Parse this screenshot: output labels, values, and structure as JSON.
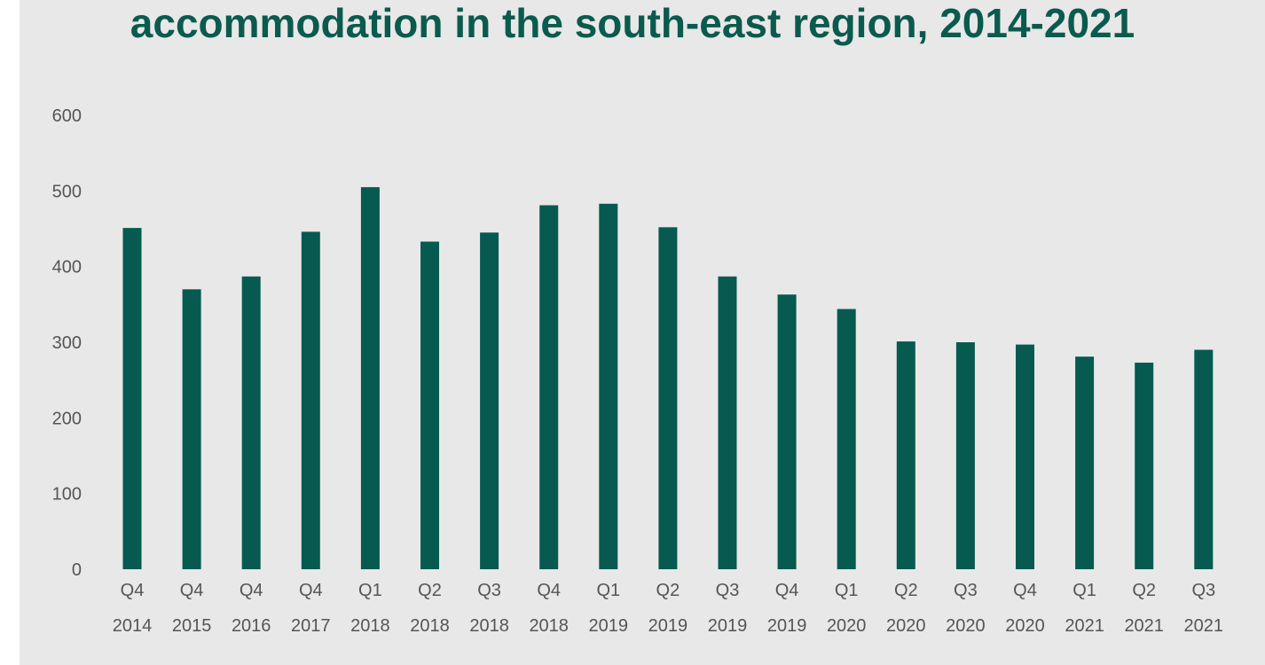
{
  "chart_data": {
    "type": "bar",
    "title": "accommodation in the south-east region, 2014-2021",
    "xlabel": "",
    "ylabel": "",
    "ylim": [
      0,
      600
    ],
    "yticks": [
      "0",
      "100",
      "200",
      "300",
      "400",
      "500",
      "600"
    ],
    "grid": false,
    "categories": [
      {
        "quarter": "Q4",
        "year": "2014"
      },
      {
        "quarter": "Q4",
        "year": "2015"
      },
      {
        "quarter": "Q4",
        "year": "2016"
      },
      {
        "quarter": "Q4",
        "year": "2017"
      },
      {
        "quarter": "Q1",
        "year": "2018"
      },
      {
        "quarter": "Q2",
        "year": "2018"
      },
      {
        "quarter": "Q3",
        "year": "2018"
      },
      {
        "quarter": "Q4",
        "year": "2018"
      },
      {
        "quarter": "Q1",
        "year": "2019"
      },
      {
        "quarter": "Q2",
        "year": "2019"
      },
      {
        "quarter": "Q3",
        "year": "2019"
      },
      {
        "quarter": "Q4",
        "year": "2019"
      },
      {
        "quarter": "Q1",
        "year": "2020"
      },
      {
        "quarter": "Q2",
        "year": "2020"
      },
      {
        "quarter": "Q3",
        "year": "2020"
      },
      {
        "quarter": "Q4",
        "year": "2020"
      },
      {
        "quarter": "Q1",
        "year": "2021"
      },
      {
        "quarter": "Q2",
        "year": "2021"
      },
      {
        "quarter": "Q3",
        "year": "2021"
      }
    ],
    "values": [
      451,
      370,
      387,
      446,
      505,
      433,
      445,
      481,
      483,
      452,
      387,
      363,
      344,
      301,
      300,
      297,
      281,
      273,
      290
    ],
    "bar_color": "#065a50"
  }
}
